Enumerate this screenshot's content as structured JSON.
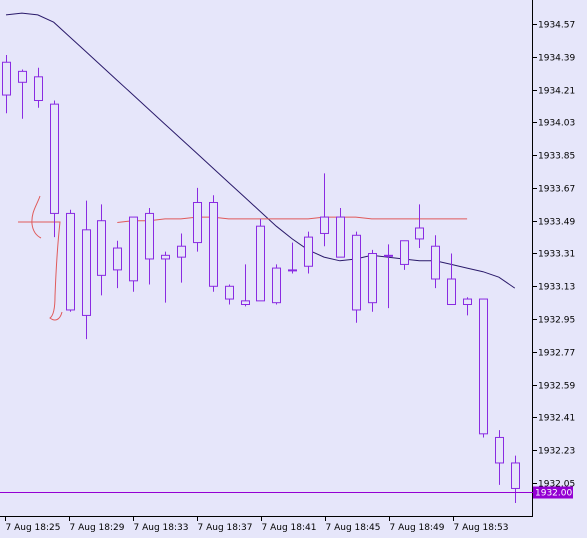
{
  "colors": {
    "background": "#e6e6fa",
    "candle": "#8a2be2",
    "moving_average_1": "#2a1a6a",
    "moving_average_2": "#e05a5a",
    "red_annotation": "#e05a5a",
    "current_price_line": "#9400d3",
    "axis": "#000000"
  },
  "chart_data": {
    "type": "candlestick",
    "price_axis": {
      "ticks": [
        "1934.57",
        "1934.39",
        "1934.21",
        "1934.03",
        "1933.85",
        "1933.67",
        "1933.49",
        "1933.31",
        "1933.13",
        "1932.95",
        "1932.77",
        "1932.59",
        "1932.41",
        "1932.23",
        "1932.05"
      ],
      "range": [
        1931.94,
        1934.68
      ]
    },
    "time_axis": {
      "ticks": [
        "7 Aug 18:25",
        "7 Aug 18:29",
        "7 Aug 18:33",
        "7 Aug 18:37",
        "7 Aug 18:41",
        "7 Aug 18:45",
        "7 Aug 18:49",
        "7 Aug 18:53"
      ]
    },
    "current_price": "1932.00",
    "candles": [
      {
        "open": 1934.36,
        "high": 1934.4,
        "low": 1934.08,
        "close": 1934.18
      },
      {
        "open": 1934.25,
        "high": 1934.32,
        "low": 1934.05,
        "close": 1934.31
      },
      {
        "open": 1934.28,
        "high": 1934.33,
        "low": 1934.11,
        "close": 1934.15
      },
      {
        "open": 1934.13,
        "high": 1934.15,
        "low": 1933.4,
        "close": 1933.53
      },
      {
        "open": 1933.53,
        "high": 1933.55,
        "low": 1932.99,
        "close": 1933.0
      },
      {
        "open": 1932.97,
        "high": 1933.6,
        "low": 1932.84,
        "close": 1933.44
      },
      {
        "open": 1933.19,
        "high": 1933.58,
        "low": 1933.08,
        "close": 1933.49
      },
      {
        "open": 1933.34,
        "high": 1933.38,
        "low": 1933.12,
        "close": 1933.22
      },
      {
        "open": 1933.16,
        "high": 1933.51,
        "low": 1933.1,
        "close": 1933.51
      },
      {
        "open": 1933.53,
        "high": 1933.56,
        "low": 1933.14,
        "close": 1933.28
      },
      {
        "open": 1933.3,
        "high": 1933.32,
        "low": 1933.04,
        "close": 1933.28
      },
      {
        "open": 1933.29,
        "high": 1933.42,
        "low": 1933.15,
        "close": 1933.35
      },
      {
        "open": 1933.37,
        "high": 1933.67,
        "low": 1933.32,
        "close": 1933.59
      },
      {
        "open": 1933.59,
        "high": 1933.63,
        "low": 1933.1,
        "close": 1933.13
      },
      {
        "open": 1933.13,
        "high": 1933.14,
        "low": 1933.03,
        "close": 1933.06
      },
      {
        "open": 1933.03,
        "high": 1933.25,
        "low": 1933.02,
        "close": 1933.05
      },
      {
        "open": 1933.46,
        "high": 1933.5,
        "low": 1933.05,
        "close": 1933.05
      },
      {
        "open": 1933.04,
        "high": 1933.25,
        "low": 1933.03,
        "close": 1933.23
      },
      {
        "open": 1933.22,
        "high": 1933.37,
        "low": 1933.2,
        "close": 1933.22
      },
      {
        "open": 1933.24,
        "high": 1933.43,
        "low": 1933.2,
        "close": 1933.4
      },
      {
        "open": 1933.42,
        "high": 1933.75,
        "low": 1933.35,
        "close": 1933.51
      },
      {
        "open": 1933.51,
        "high": 1933.56,
        "low": 1933.29,
        "close": 1933.29
      },
      {
        "open": 1933.41,
        "high": 1933.43,
        "low": 1932.93,
        "close": 1933.0
      },
      {
        "open": 1933.04,
        "high": 1933.33,
        "low": 1932.99,
        "close": 1933.31
      },
      {
        "open": 1933.3,
        "high": 1933.36,
        "low": 1933.01,
        "close": 1933.3
      },
      {
        "open": 1933.25,
        "high": 1933.37,
        "low": 1933.22,
        "close": 1933.38
      },
      {
        "open": 1933.39,
        "high": 1933.58,
        "low": 1933.34,
        "close": 1933.45
      },
      {
        "open": 1933.35,
        "high": 1933.41,
        "low": 1933.12,
        "close": 1933.17
      },
      {
        "open": 1933.17,
        "high": 1933.31,
        "low": 1933.03,
        "close": 1933.03
      },
      {
        "open": 1933.03,
        "high": 1933.07,
        "low": 1932.97,
        "close": 1933.06
      },
      {
        "open": 1933.06,
        "high": 1933.06,
        "low": 1932.3,
        "close": 1932.32
      },
      {
        "open": 1932.3,
        "high": 1932.34,
        "low": 1932.04,
        "close": 1932.16
      },
      {
        "open": 1932.16,
        "high": 1932.2,
        "low": 1931.94,
        "close": 1932.02
      }
    ],
    "moving_average_1": [
      1934.62,
      1934.63,
      1934.62,
      1934.58,
      1934.5,
      1934.42,
      1934.34,
      1934.26,
      1934.18,
      1934.1,
      1934.02,
      1933.94,
      1933.86,
      1933.78,
      1933.7,
      1933.62,
      1933.54,
      1933.46,
      1933.39,
      1933.33,
      1933.29,
      1933.27,
      1933.28,
      1933.3,
      1933.29,
      1933.28,
      1933.27,
      1933.27,
      1933.25,
      1933.23,
      1933.21,
      1933.18,
      1933.12
    ],
    "moving_average_2": [
      null,
      null,
      null,
      null,
      null,
      null,
      null,
      1933.48,
      1933.49,
      1933.49,
      1933.5,
      1933.5,
      1933.51,
      1933.51,
      1933.5,
      1933.5,
      1933.5,
      1933.5,
      1933.5,
      1933.5,
      1933.51,
      1933.51,
      1933.51,
      1933.5,
      1933.5,
      1933.5,
      1933.5,
      1933.5,
      1933.5,
      1933.5,
      null,
      null,
      null
    ]
  }
}
